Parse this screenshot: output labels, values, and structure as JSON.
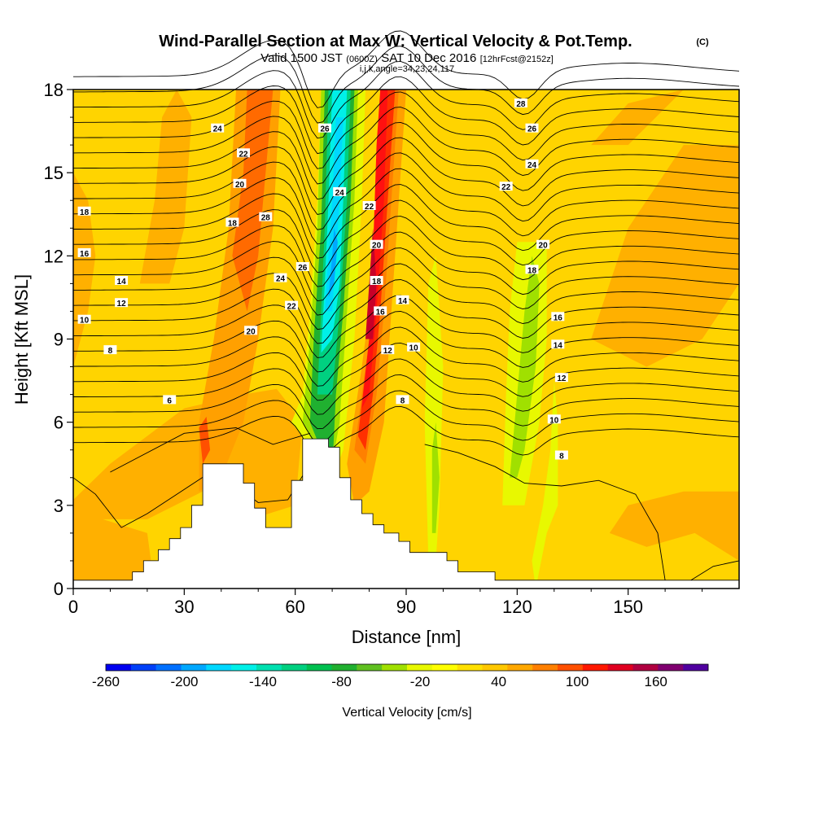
{
  "chart_data": {
    "type": "heatmap",
    "title": "Wind-Parallel Section at Max W: Vertical Velocity & Pot.Temp.",
    "title_mark": "(C)",
    "subtitle_main": "Valid 1500 JST",
    "subtitle_z": "(0600Z)",
    "subtitle_date": "SAT 10 Dec 2016",
    "subtitle_fcst": "[12hrFcst@2152z]",
    "indices_text": "i,j,k,angle=34,23,24,117",
    "xlabel": "Distance [nm]",
    "ylabel": "Height [Kft MSL]",
    "xlim": [
      0,
      180
    ],
    "ylim": [
      0,
      18
    ],
    "xticks": [
      "0",
      "30",
      "60",
      "90",
      "120",
      "150"
    ],
    "yticks": [
      "0",
      "3",
      "6",
      "9",
      "12",
      "15",
      "18"
    ],
    "colorbar": {
      "title": "Vertical Velocity [cm/s]",
      "ticks": [
        "-260",
        "-200",
        "-140",
        "-80",
        "-20",
        "40",
        "100",
        "160"
      ],
      "levels": [
        -260,
        -240,
        -220,
        -200,
        -180,
        -160,
        -140,
        -120,
        -100,
        -80,
        -60,
        -40,
        -20,
        0,
        20,
        40,
        60,
        80,
        100,
        120,
        140,
        160,
        180,
        200
      ],
      "colors": [
        "#0000f0",
        "#0040f8",
        "#0070ff",
        "#00a8ff",
        "#00d8ff",
        "#00f0e8",
        "#00e0b0",
        "#00d080",
        "#00c050",
        "#20b030",
        "#60c020",
        "#a0e000",
        "#e8f800",
        "#ffff00",
        "#ffe000",
        "#ffc800",
        "#ffa800",
        "#ff8000",
        "#ff5000",
        "#ff1800",
        "#e00020",
        "#b00040",
        "#800070",
        "#5000a0"
      ]
    },
    "theta_contour_labels_K": [
      6,
      8,
      10,
      12,
      14,
      16,
      18,
      20,
      22,
      24,
      26,
      28
    ],
    "features": [
      {
        "name": "downdraft band",
        "x_range": [
          62,
          76
        ],
        "min_w": -200
      },
      {
        "name": "main updraft band",
        "x_range": [
          76,
          90
        ],
        "max_w": 120
      },
      {
        "name": "weak downdraft",
        "x_range": [
          118,
          128
        ],
        "min_w": -60
      }
    ],
    "terrain_top_kft": [
      [
        0,
        0.3
      ],
      [
        16,
        0.3
      ],
      [
        16,
        0.6
      ],
      [
        19,
        0.6
      ],
      [
        19,
        1.0
      ],
      [
        23,
        1.0
      ],
      [
        23,
        1.4
      ],
      [
        26,
        1.4
      ],
      [
        26,
        1.8
      ],
      [
        29,
        1.8
      ],
      [
        29,
        2.2
      ],
      [
        32,
        2.2
      ],
      [
        32,
        3.0
      ],
      [
        35,
        3.0
      ],
      [
        35,
        4.5
      ],
      [
        46,
        4.5
      ],
      [
        46,
        3.8
      ],
      [
        49,
        3.8
      ],
      [
        49,
        2.9
      ],
      [
        52,
        2.9
      ],
      [
        52,
        2.2
      ],
      [
        59,
        2.2
      ],
      [
        59,
        3.9
      ],
      [
        62,
        3.9
      ],
      [
        62,
        5.4
      ],
      [
        69,
        5.4
      ],
      [
        69,
        5.1
      ],
      [
        72,
        5.1
      ],
      [
        72,
        4.0
      ],
      [
        75,
        4.0
      ],
      [
        75,
        3.2
      ],
      [
        78,
        3.2
      ],
      [
        78,
        2.7
      ],
      [
        81,
        2.7
      ],
      [
        81,
        2.3
      ],
      [
        84,
        2.3
      ],
      [
        84,
        2.0
      ],
      [
        88,
        2.0
      ],
      [
        88,
        1.7
      ],
      [
        91,
        1.7
      ],
      [
        91,
        1.3
      ],
      [
        101,
        1.3
      ],
      [
        101,
        1.0
      ],
      [
        104,
        1.0
      ],
      [
        104,
        0.6
      ],
      [
        114,
        0.6
      ],
      [
        114,
        0.3
      ],
      [
        180,
        0.3
      ]
    ]
  }
}
